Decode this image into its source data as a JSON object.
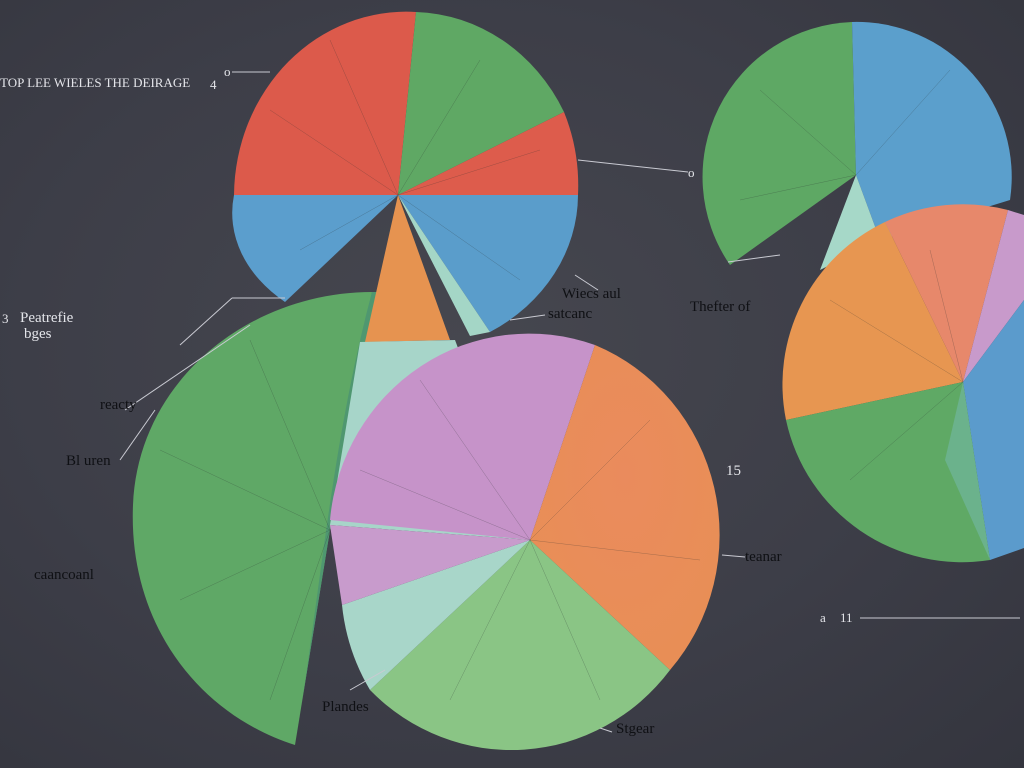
{
  "labels": {
    "top_title": "TOP LEE WIELES THE DEIRAGE",
    "top_title_suffix": "4",
    "top_circle_marker": "o",
    "left_mark": "3",
    "left_title_line1": "Peatrefie",
    "left_title_line2": "bges",
    "mid_left_1": "reacty",
    "mid_left_2": "Bl uren",
    "bottom_left": "caancoanl",
    "center_right_line1": "Wiecs aul",
    "center_right_line2": "satcanc",
    "right_mid": "Thefter of",
    "right_end_marker": "o",
    "number_15": "15",
    "leader_right": "teanar",
    "bottom_right_a": "a",
    "bottom_right_b": "11",
    "bottom_center_left": "Plandes",
    "bottom_center_right": "Stgear"
  },
  "colors": {
    "background": "#3c3d47",
    "red": "#dc5a4b",
    "green": "#61a863",
    "blue": "#5b9fcc",
    "orange": "#e39150",
    "purple": "#c594c9",
    "mint": "#a8d6c7",
    "light_green": "#88c382"
  }
}
